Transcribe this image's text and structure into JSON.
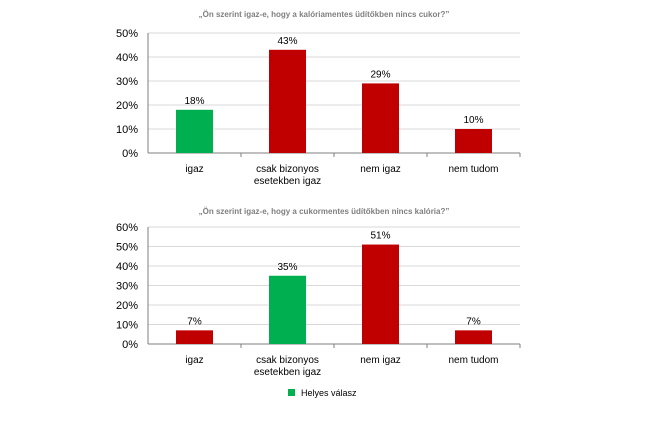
{
  "chart_data": [
    {
      "type": "bar",
      "title": "„Ön szerint igaz-e, hogy a kalóriamentes üdítőkben nincs cukor?”",
      "categories": [
        [
          "igaz"
        ],
        [
          "csak bizonyos",
          "esetekben igaz"
        ],
        [
          "nem igaz"
        ],
        [
          "nem tudom"
        ]
      ],
      "values": [
        18,
        43,
        29,
        10
      ],
      "data_labels": [
        "18%",
        "43%",
        "29%",
        "10%"
      ],
      "bar_colors": [
        "#00b050",
        "#c00000",
        "#c00000",
        "#c00000"
      ],
      "ylim": [
        0,
        50
      ],
      "yticks": [
        "0%",
        "10%",
        "20%",
        "30%",
        "40%",
        "50%"
      ],
      "grid": true
    },
    {
      "type": "bar",
      "title": "„Ön szerint igaz-e, hogy a cukormentes üdítőkben nincs kalória?”",
      "categories": [
        [
          "igaz"
        ],
        [
          "csak bizonyos",
          "esetekben igaz"
        ],
        [
          "nem igaz"
        ],
        [
          "nem tudom"
        ]
      ],
      "values": [
        7,
        35,
        51,
        7
      ],
      "data_labels": [
        "7%",
        "35%",
        "51%",
        "7%"
      ],
      "bar_colors": [
        "#c00000",
        "#00b050",
        "#c00000",
        "#c00000"
      ],
      "ylim": [
        0,
        60
      ],
      "yticks": [
        "0%",
        "10%",
        "20%",
        "30%",
        "40%",
        "50%",
        "60%"
      ],
      "grid": true
    }
  ],
  "legend": {
    "label": "Helyes válasz",
    "color": "#00b050"
  }
}
